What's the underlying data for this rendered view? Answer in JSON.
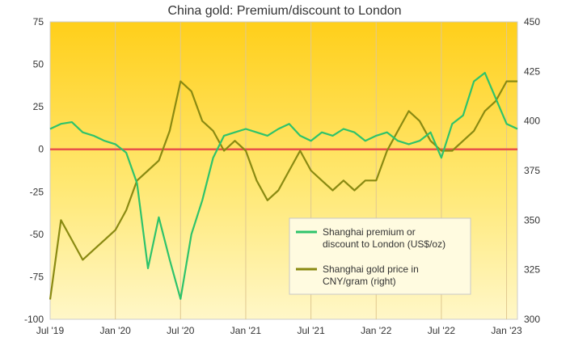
{
  "chart_data": {
    "type": "line",
    "title": "China gold: Premium/discount to London",
    "xlabel": "",
    "ylabel": "",
    "x_ticks": [
      "Jul '19",
      "Jan '20",
      "Jul '20",
      "Jan '21",
      "Jul '21",
      "Jan '22",
      "Jul '22",
      "Jan '23"
    ],
    "x_range": [
      "2019-07",
      "2023-02"
    ],
    "y_left": {
      "range": [
        -100,
        75
      ],
      "ticks": [
        -100,
        -75,
        -50,
        -25,
        0,
        25,
        50,
        75
      ]
    },
    "y_right": {
      "range": [
        300,
        450
      ],
      "ticks": [
        300,
        325,
        350,
        375,
        400,
        425,
        450
      ]
    },
    "grid": "vertical",
    "legend": {
      "placement": "bottom-right",
      "entries": [
        {
          "name": "Shanghai premium or discount to London (US$/oz)",
          "lines": [
            "Shanghai premium or",
            "discount to London (US$/oz)"
          ],
          "color": "#2ec36b",
          "axis": "left"
        },
        {
          "name": "Shanghai gold price in CNY/gram (right)",
          "lines": [
            "Shanghai gold price in",
            "CNY/gram (right)"
          ],
          "color": "#8a8a12",
          "axis": "right"
        }
      ]
    },
    "zero_line": {
      "value": 0,
      "color": "#e8524a"
    },
    "series": [
      {
        "name": "Shanghai premium or discount to London (US$/oz)",
        "axis": "left",
        "color": "#2ec36b",
        "x": [
          "2019-07",
          "2019-08",
          "2019-09",
          "2019-10",
          "2019-11",
          "2019-12",
          "2020-01",
          "2020-02",
          "2020-03",
          "2020-04",
          "2020-05",
          "2020-06",
          "2020-07",
          "2020-08",
          "2020-09",
          "2020-10",
          "2020-11",
          "2020-12",
          "2021-01",
          "2021-02",
          "2021-03",
          "2021-04",
          "2021-05",
          "2021-06",
          "2021-07",
          "2021-08",
          "2021-09",
          "2021-10",
          "2021-11",
          "2021-12",
          "2022-01",
          "2022-02",
          "2022-03",
          "2022-04",
          "2022-05",
          "2022-06",
          "2022-07",
          "2022-08",
          "2022-09",
          "2022-10",
          "2022-11",
          "2022-12",
          "2023-01",
          "2023-02"
        ],
        "values": [
          12,
          15,
          16,
          10,
          8,
          5,
          3,
          -2,
          -20,
          -70,
          -40,
          -65,
          -88,
          -50,
          -30,
          -5,
          8,
          10,
          12,
          10,
          8,
          12,
          15,
          8,
          5,
          10,
          8,
          12,
          10,
          5,
          8,
          10,
          5,
          3,
          5,
          10,
          -5,
          15,
          20,
          40,
          45,
          30,
          15,
          12
        ]
      },
      {
        "name": "Shanghai gold price in CNY/gram (right)",
        "axis": "right",
        "color": "#8a8a12",
        "x": [
          "2019-07",
          "2019-08",
          "2019-09",
          "2019-10",
          "2019-11",
          "2019-12",
          "2020-01",
          "2020-02",
          "2020-03",
          "2020-04",
          "2020-05",
          "2020-06",
          "2020-07",
          "2020-08",
          "2020-09",
          "2020-10",
          "2020-11",
          "2020-12",
          "2021-01",
          "2021-02",
          "2021-03",
          "2021-04",
          "2021-05",
          "2021-06",
          "2021-07",
          "2021-08",
          "2021-09",
          "2021-10",
          "2021-11",
          "2021-12",
          "2022-01",
          "2022-02",
          "2022-03",
          "2022-04",
          "2022-05",
          "2022-06",
          "2022-07",
          "2022-08",
          "2022-09",
          "2022-10",
          "2022-11",
          "2022-12",
          "2023-01",
          "2023-02"
        ],
        "values": [
          310,
          350,
          340,
          330,
          335,
          340,
          345,
          355,
          370,
          375,
          380,
          395,
          420,
          415,
          400,
          395,
          385,
          390,
          385,
          370,
          360,
          365,
          375,
          385,
          375,
          370,
          365,
          370,
          365,
          370,
          370,
          385,
          395,
          405,
          400,
          390,
          385,
          385,
          390,
          395,
          405,
          410,
          420,
          420
        ]
      }
    ]
  }
}
